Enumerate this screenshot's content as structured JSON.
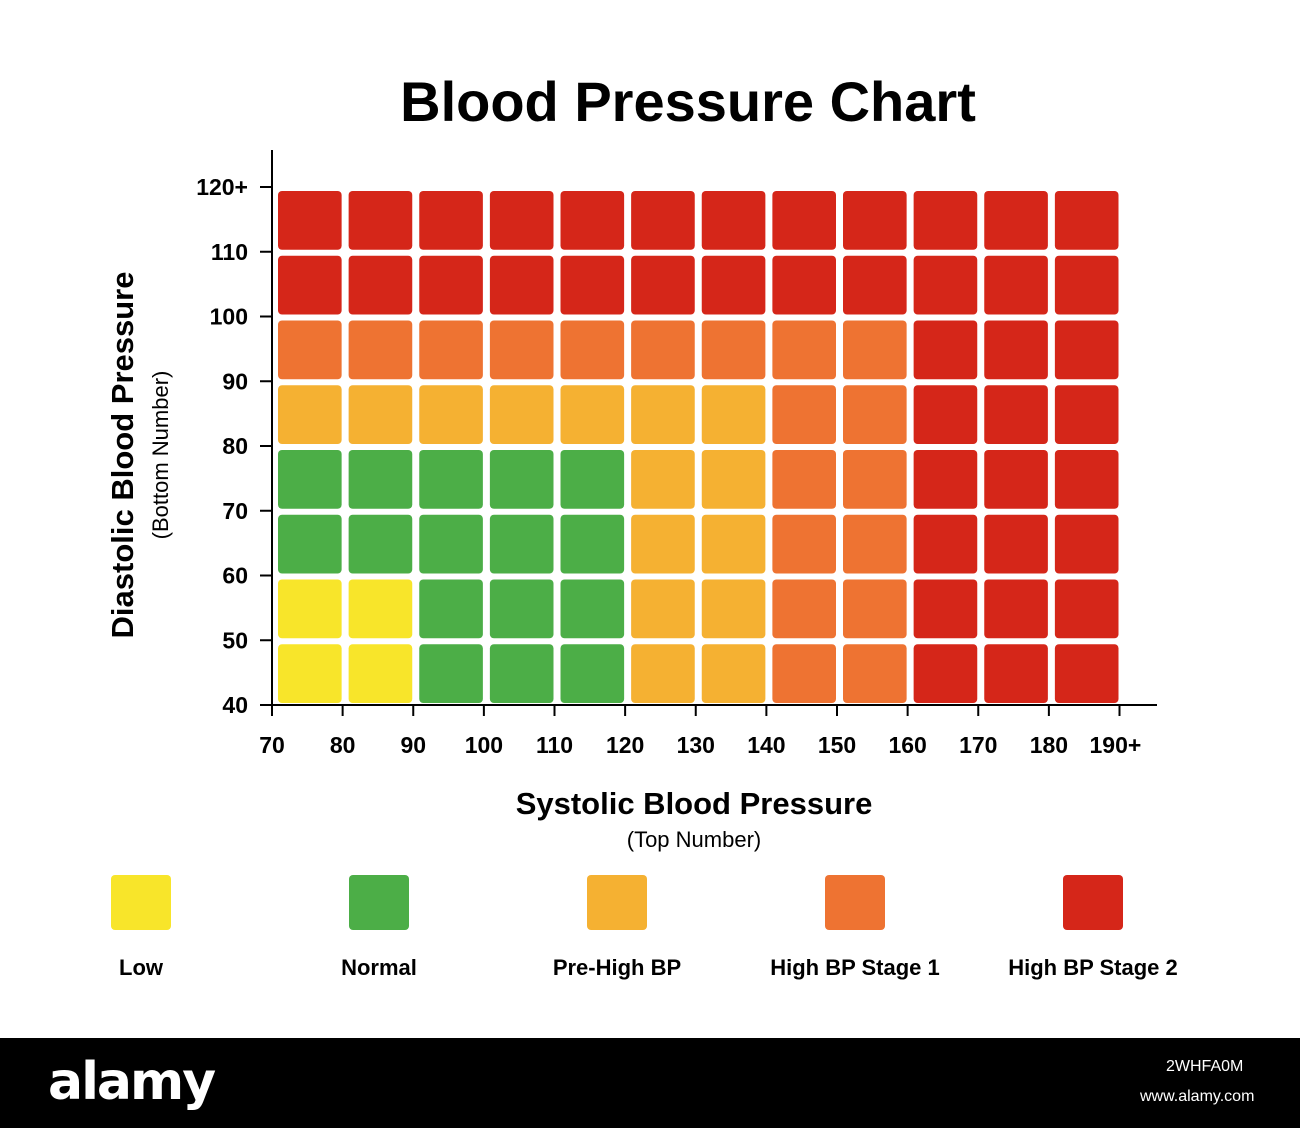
{
  "chart_data": {
    "type": "heatmap",
    "title": "Blood Pressure Chart",
    "xlabel": "Systolic Blood Pressure",
    "xlabel_sub": "(Top Number)",
    "ylabel": "Diastolic Blood Pressure",
    "ylabel_sub": "(Bottom Number)",
    "x_ticks": [
      "70",
      "80",
      "90",
      "100",
      "110",
      "120",
      "130",
      "140",
      "150",
      "160",
      "170",
      "180",
      "190+"
    ],
    "y_ticks": [
      "40",
      "50",
      "60",
      "70",
      "80",
      "90",
      "100",
      "110",
      "120+"
    ],
    "xlim": [
      70,
      190
    ],
    "ylim": [
      40,
      120
    ],
    "cell_width": 10,
    "cell_height": 10,
    "categories": [
      {
        "key": "low",
        "label": "Low",
        "color": "#f8e52a"
      },
      {
        "key": "normal",
        "label": "Normal",
        "color": "#4cae47"
      },
      {
        "key": "pre",
        "label": "Pre-High BP",
        "color": "#f5b132"
      },
      {
        "key": "stage1",
        "label": "High BP Stage 1",
        "color": "#ee7332"
      },
      {
        "key": "stage2",
        "label": "High BP Stage 2",
        "color": "#d52619"
      }
    ],
    "grid_rows_top_to_bottom": [
      [
        "stage2",
        "stage2",
        "stage2",
        "stage2",
        "stage2",
        "stage2",
        "stage2",
        "stage2",
        "stage2",
        "stage2",
        "stage2",
        "stage2"
      ],
      [
        "stage2",
        "stage2",
        "stage2",
        "stage2",
        "stage2",
        "stage2",
        "stage2",
        "stage2",
        "stage2",
        "stage2",
        "stage2",
        "stage2"
      ],
      [
        "stage1",
        "stage1",
        "stage1",
        "stage1",
        "stage1",
        "stage1",
        "stage1",
        "stage1",
        "stage1",
        "stage2",
        "stage2",
        "stage2"
      ],
      [
        "pre",
        "pre",
        "pre",
        "pre",
        "pre",
        "pre",
        "pre",
        "stage1",
        "stage1",
        "stage2",
        "stage2",
        "stage2"
      ],
      [
        "normal",
        "normal",
        "normal",
        "normal",
        "normal",
        "pre",
        "pre",
        "stage1",
        "stage1",
        "stage2",
        "stage2",
        "stage2"
      ],
      [
        "normal",
        "normal",
        "normal",
        "normal",
        "normal",
        "pre",
        "pre",
        "stage1",
        "stage1",
        "stage2",
        "stage2",
        "stage2"
      ],
      [
        "low",
        "low",
        "normal",
        "normal",
        "normal",
        "pre",
        "pre",
        "stage1",
        "stage1",
        "stage2",
        "stage2",
        "stage2"
      ],
      [
        "low",
        "low",
        "normal",
        "normal",
        "normal",
        "pre",
        "pre",
        "stage1",
        "stage1",
        "stage2",
        "stage2",
        "stage2"
      ]
    ]
  },
  "footer": {
    "logo": "alamy",
    "image_id": "2WHFA0M",
    "url": "www.alamy.com"
  }
}
